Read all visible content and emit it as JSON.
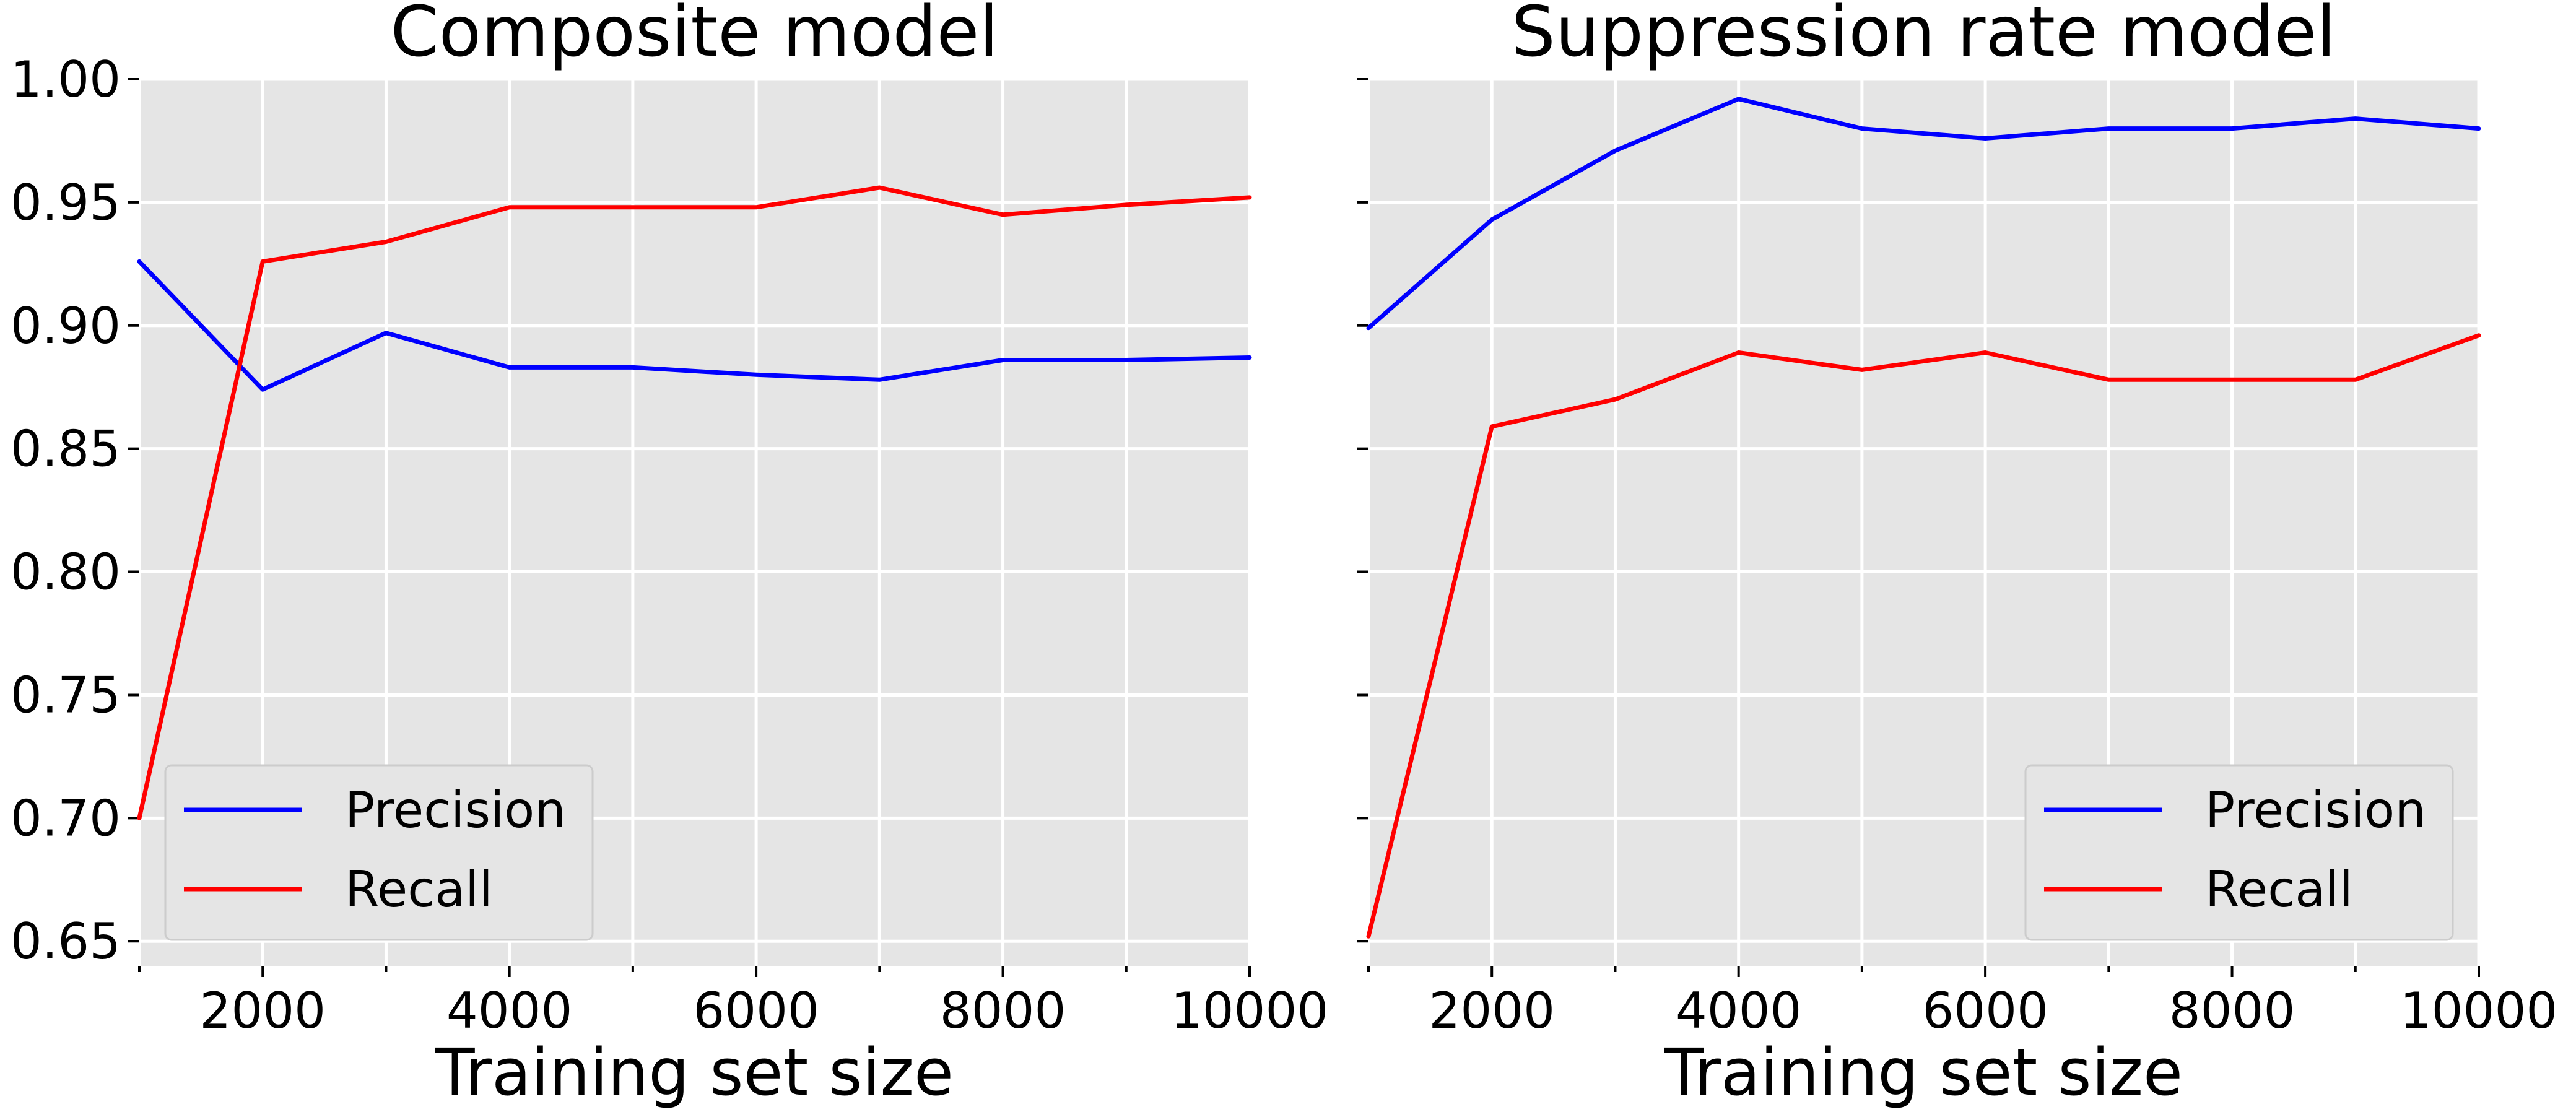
{
  "chart_data": [
    {
      "type": "line",
      "title": "Composite model",
      "xlabel": "Training set size",
      "ylabel": "",
      "xlim": [
        1000,
        10000
      ],
      "ylim": [
        0.64,
        1.0
      ],
      "x": [
        1000,
        2000,
        3000,
        4000,
        5000,
        6000,
        7000,
        8000,
        9000,
        10000
      ],
      "x_major_ticks": [
        2000,
        4000,
        6000,
        8000,
        10000
      ],
      "x_minor_ticks": [
        1000,
        3000,
        5000,
        7000,
        9000
      ],
      "x_tick_labels": [
        "2000",
        "4000",
        "6000",
        "8000",
        "10000"
      ],
      "y_ticks": [
        0.65,
        0.7,
        0.75,
        0.8,
        0.85,
        0.9,
        0.95,
        1.0
      ],
      "y_tick_labels": [
        "0.65",
        "0.70",
        "0.75",
        "0.80",
        "0.85",
        "0.90",
        "0.95",
        "1.00"
      ],
      "show_y_tick_labels": true,
      "grid": true,
      "legend": "lower-left",
      "series": [
        {
          "name": "Precision",
          "color": "#0000ff",
          "values": [
            0.926,
            0.874,
            0.897,
            0.883,
            0.883,
            0.88,
            0.878,
            0.886,
            0.886,
            0.887
          ]
        },
        {
          "name": "Recall",
          "color": "#ff0000",
          "values": [
            0.7,
            0.926,
            0.934,
            0.948,
            0.948,
            0.948,
            0.956,
            0.945,
            0.949,
            0.952
          ]
        }
      ]
    },
    {
      "type": "line",
      "title": "Suppression rate model",
      "xlabel": "Training set size",
      "ylabel": "",
      "xlim": [
        1000,
        10000
      ],
      "ylim": [
        0.64,
        1.0
      ],
      "x": [
        1000,
        2000,
        3000,
        4000,
        5000,
        6000,
        7000,
        8000,
        9000,
        10000
      ],
      "x_major_ticks": [
        2000,
        4000,
        6000,
        8000,
        10000
      ],
      "x_minor_ticks": [
        1000,
        3000,
        5000,
        7000,
        9000
      ],
      "x_tick_labels": [
        "2000",
        "4000",
        "6000",
        "8000",
        "10000"
      ],
      "y_ticks": [
        0.65,
        0.7,
        0.75,
        0.8,
        0.85,
        0.9,
        0.95,
        1.0
      ],
      "y_tick_labels": [],
      "show_y_tick_labels": false,
      "grid": true,
      "legend": "lower-right",
      "series": [
        {
          "name": "Precision",
          "color": "#0000ff",
          "values": [
            0.899,
            0.943,
            0.971,
            0.992,
            0.98,
            0.976,
            0.98,
            0.98,
            0.984,
            0.98
          ]
        },
        {
          "name": "Recall",
          "color": "#ff0000",
          "values": [
            0.652,
            0.859,
            0.87,
            0.889,
            0.882,
            0.889,
            0.878,
            0.878,
            0.878,
            0.896
          ]
        }
      ]
    }
  ]
}
